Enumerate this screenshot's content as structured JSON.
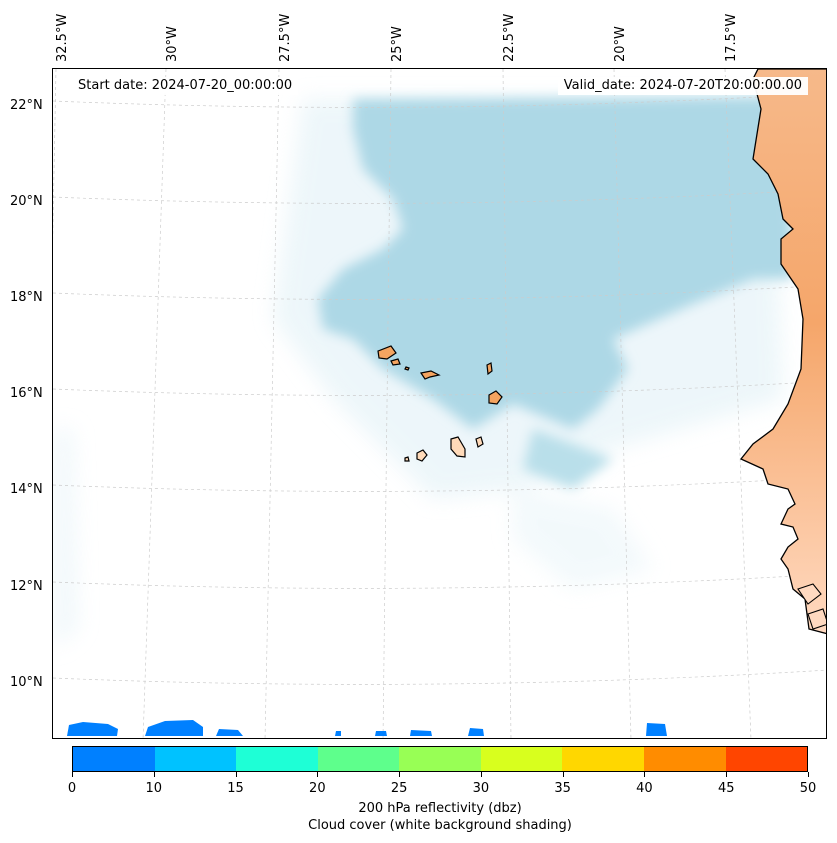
{
  "map": {
    "start_label": "Start date: 2024-07-20_00:00:00",
    "valid_label": "Valid_date: 2024-07-20T20:00:00.00",
    "longitude_labels": [
      "32.5°W",
      "30°W",
      "27.5°W",
      "25°W",
      "22.5°W",
      "20°W",
      "17.5°W"
    ],
    "latitude_labels": [
      "22°N",
      "20°N",
      "18°N",
      "16°N",
      "14°N",
      "12°N",
      "10°N"
    ]
  },
  "colorbar": {
    "tick_labels": [
      "0",
      "10",
      "15",
      "20",
      "25",
      "30",
      "35",
      "40",
      "45",
      "50"
    ],
    "colors": [
      "#0080ff",
      "#00c2ff",
      "#1effd6",
      "#5eff8c",
      "#98ff55",
      "#d8ff1e",
      "#ffd700",
      "#ff8c00",
      "#ff4500"
    ],
    "caption_line1": "200 hPa reflectivity (dbz)",
    "caption_line2": "Cloud cover (white background shading)"
  },
  "colors": {
    "cloud": "#add8e6",
    "land_high": "#f4a460",
    "land_low": "#ffdab9",
    "reflectivity_low": "#0080ff",
    "coastline": "#000000"
  }
}
